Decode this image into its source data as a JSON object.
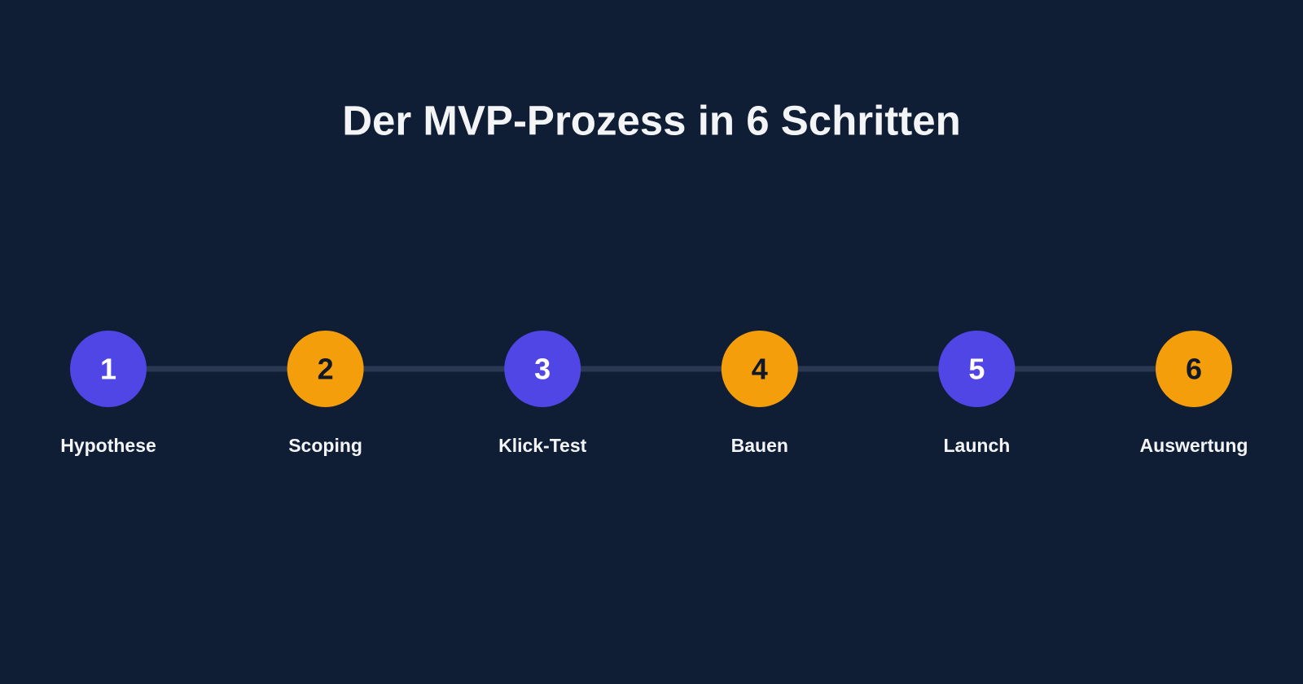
{
  "title": "Der MVP-Prozess in 6 Schritten",
  "steps": [
    {
      "number": "1",
      "label": "Hypothese"
    },
    {
      "number": "2",
      "label": "Scoping"
    },
    {
      "number": "3",
      "label": "Klick-Test"
    },
    {
      "number": "4",
      "label": "Bauen"
    },
    {
      "number": "5",
      "label": "Launch"
    },
    {
      "number": "6",
      "label": "Auswertung"
    }
  ]
}
